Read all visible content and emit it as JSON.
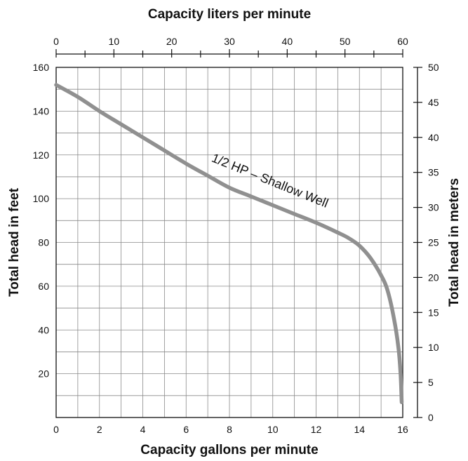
{
  "chart_data": {
    "type": "line",
    "title": "Capacity liters per minute",
    "xlabel": "Capacity gallons per minute",
    "ylabel": "Total head in feet",
    "ylabel_right": "Total head in meters",
    "xlim": [
      0,
      16
    ],
    "ylim": [
      0,
      160
    ],
    "x_ticks": [
      "0",
      "2",
      "4",
      "6",
      "8",
      "10",
      "12",
      "14",
      "16"
    ],
    "y_ticks": [
      "20",
      "40",
      "60",
      "80",
      "100",
      "120",
      "140",
      "160"
    ],
    "top_axis": {
      "xlim": [
        0,
        60
      ],
      "ticks": [
        "0",
        "10",
        "20",
        "30",
        "40",
        "50",
        "60"
      ]
    },
    "right_axis": {
      "ylim": [
        0,
        50
      ],
      "ticks": [
        "0",
        "5",
        "10",
        "15",
        "20",
        "25",
        "30",
        "35",
        "40",
        "45",
        "50"
      ]
    },
    "grid": true,
    "series": [
      {
        "name": "1/2 HP – Shallow Well",
        "color": "#909090",
        "x": [
          0,
          1,
          2,
          3,
          4,
          5,
          6,
          7,
          8,
          9,
          10,
          11,
          12,
          13,
          13.5,
          14,
          14.5,
          15,
          15.3,
          15.6,
          15.8,
          15.9,
          15.95
        ],
        "y": [
          152,
          146.5,
          140,
          134,
          128,
          122,
          116,
          110.5,
          105,
          101,
          97,
          93,
          89,
          84.5,
          82,
          78.5,
          73,
          65,
          58,
          45,
          32,
          20,
          7
        ]
      }
    ],
    "annotations": [
      {
        "text": "1/2 HP – Shallow Well"
      }
    ]
  }
}
